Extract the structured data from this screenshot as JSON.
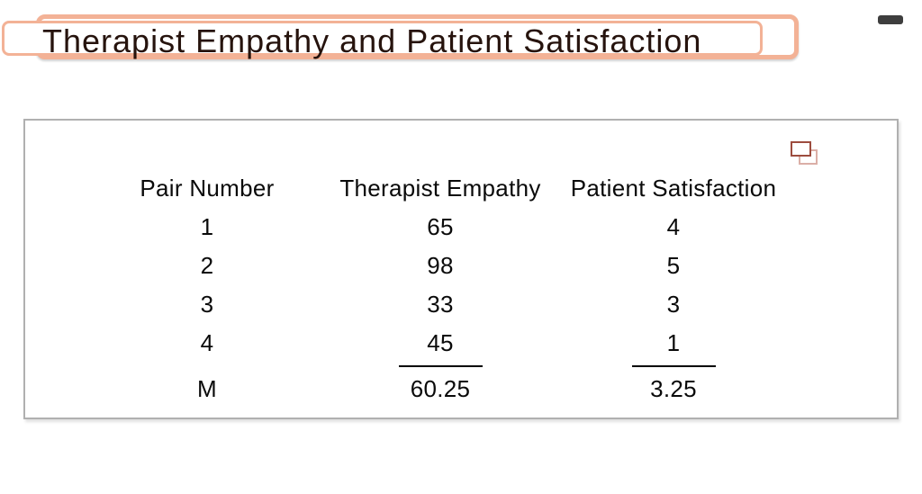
{
  "slide": {
    "title": "Therapist Empathy and Patient Satisfaction"
  },
  "table": {
    "columns": [
      "Pair Number",
      "Therapist Empathy",
      "Patient Satisfaction"
    ],
    "rows": [
      [
        "1",
        "65",
        "4"
      ],
      [
        "2",
        "98",
        "5"
      ],
      [
        "3",
        "33",
        "3"
      ],
      [
        "4",
        "45",
        "1"
      ]
    ],
    "summary_row": [
      "M",
      "60.25",
      "3.25"
    ]
  },
  "icons": {
    "minimize_bar": "dark rounded bar",
    "bring_forward": "overlapping rectangles"
  },
  "colors": {
    "accent_peach": "#f3b296",
    "title_text": "#26130d",
    "table_text": "#0a0a0a",
    "card_border": "#b0b0b0",
    "icon_front": "#9d4c3e",
    "icon_back": "#dbafa7",
    "minimize_bar": "#3e3e3e",
    "background": "#ffffff"
  }
}
